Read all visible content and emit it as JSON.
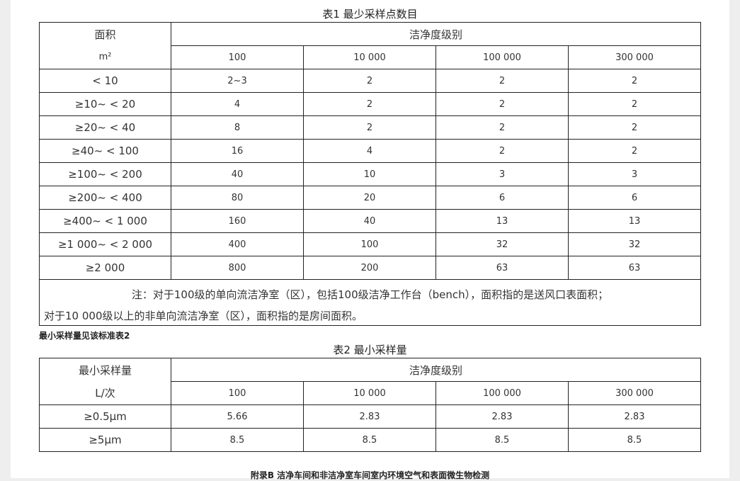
{
  "table1": {
    "caption": "表1  最少采样点数目",
    "area_header": "面积",
    "area_unit": "m²",
    "class_header": "洁净度级别",
    "classes": [
      "100",
      "10 000",
      "100 000",
      "300 000"
    ],
    "rows": [
      {
        "area": "< 10",
        "values": [
          "2~3",
          "2",
          "2",
          "2"
        ]
      },
      {
        "area": "≥10~ < 20",
        "values": [
          "4",
          "2",
          "2",
          "2"
        ]
      },
      {
        "area": "≥20~ < 40",
        "values": [
          "8",
          "2",
          "2",
          "2"
        ]
      },
      {
        "area": "≥40~ < 100",
        "values": [
          "16",
          "4",
          "2",
          "2"
        ]
      },
      {
        "area": "≥100~ < 200",
        "values": [
          "40",
          "10",
          "3",
          "3"
        ]
      },
      {
        "area": "≥200~ < 400",
        "values": [
          "80",
          "20",
          "6",
          "6"
        ]
      },
      {
        "area": "≥400~ < 1 000",
        "values": [
          "160",
          "40",
          "13",
          "13"
        ]
      },
      {
        "area": "≥1 000~ < 2 000",
        "values": [
          "400",
          "100",
          "32",
          "32"
        ]
      },
      {
        "area": "≥2 000",
        "values": [
          "800",
          "200",
          "63",
          "63"
        ]
      }
    ],
    "note_line1": "注：对于100级的单向流洁净室（区），包括100级洁净工作台（bench），面积指的是送风口表面积；",
    "note_line2": "对于10 000级以上的非单向流洁净室（区），面积指的是房间面积。"
  },
  "between_text": "最小采样量见该标准表2",
  "table2": {
    "caption": "表2  最小采样量",
    "vol_header": "最小采样量",
    "vol_unit": "L/次",
    "class_header": "洁净度级别",
    "classes": [
      "100",
      "10 000",
      "100 000",
      "300 000"
    ],
    "rows": [
      {
        "size": "≥0.5μm",
        "values": [
          "5.66",
          "2.83",
          "2.83",
          "2.83"
        ]
      },
      {
        "size": "≥5μm",
        "values": [
          "8.5",
          "8.5",
          "8.5",
          "8.5"
        ]
      }
    ]
  },
  "appendix_title": "附录B 洁净车间和非洁净室车间室内环境空气和表面微生物检测"
}
